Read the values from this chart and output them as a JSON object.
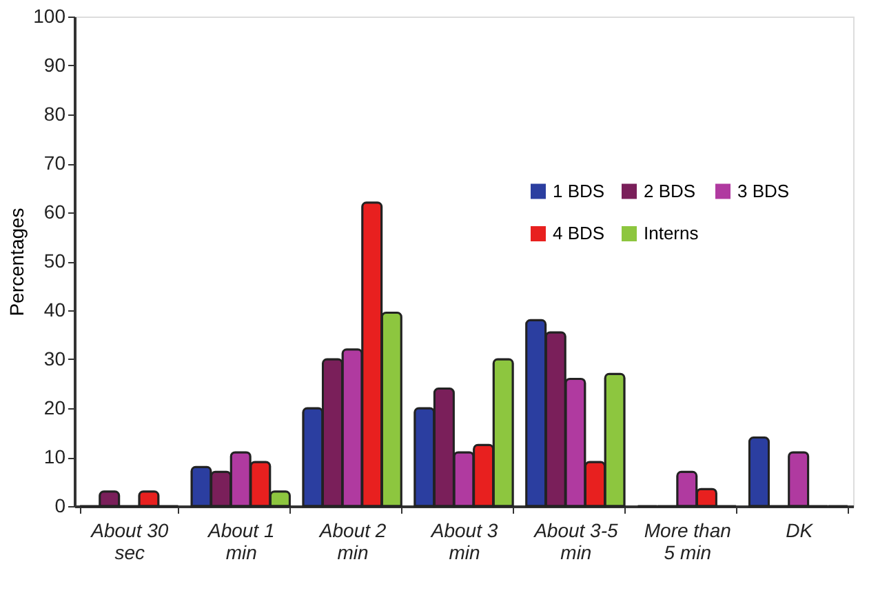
{
  "chart_data": {
    "type": "bar",
    "ylabel": "Percentages",
    "categories": [
      "About 30 sec",
      "About 1 min",
      "About 2 min",
      "About 3 min",
      "About 3-5 min",
      "More than 5 min",
      "DK"
    ],
    "series": [
      {
        "name": "1 BDS",
        "color": "#2b3ea0",
        "values": [
          0,
          8,
          20,
          20,
          38,
          0,
          14
        ]
      },
      {
        "name": "2 BDS",
        "color": "#7a1f5a",
        "values": [
          3,
          7,
          30,
          24,
          35.5,
          0,
          0
        ]
      },
      {
        "name": "3 BDS",
        "color": "#b03aa0",
        "values": [
          0,
          11,
          32,
          11,
          26,
          7,
          11
        ]
      },
      {
        "name": "4 BDS",
        "color": "#e8201f",
        "values": [
          3,
          9,
          62,
          12.5,
          9,
          3.5,
          0
        ]
      },
      {
        "name": "Interns",
        "color": "#8dc63f",
        "values": [
          0,
          3,
          39.5,
          30,
          27,
          0,
          0
        ]
      }
    ],
    "ylim": [
      0,
      100
    ],
    "yticks": [
      0,
      10,
      20,
      30,
      40,
      50,
      60,
      70,
      80,
      90,
      100
    ],
    "grid": false,
    "legend": "top right"
  }
}
